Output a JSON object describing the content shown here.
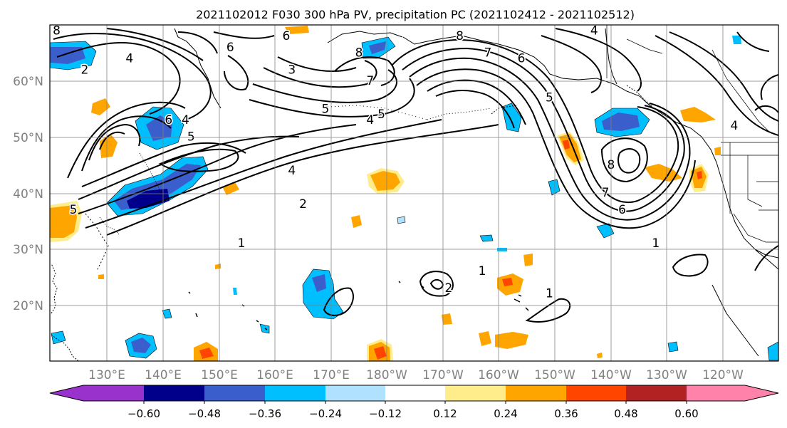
{
  "title": "2021102012 F030 300 hPa PV, precipitation PC (2021102412 - 2021102512)",
  "lat_labels": [
    "60°N",
    "50°N",
    "40°N",
    "30°N",
    "20°N"
  ],
  "lon_labels": [
    "130°E",
    "140°E",
    "150°E",
    "160°E",
    "170°E",
    "180°W",
    "170°W",
    "160°W",
    "150°W",
    "140°W",
    "130°W",
    "120°W"
  ],
  "colorbar": {
    "ticks": [
      "−0.60",
      "−0.48",
      "−0.36",
      "−0.24",
      "−0.12",
      "0.12",
      "0.24",
      "0.36",
      "0.48",
      "0.60"
    ],
    "colors": [
      "#9932cc",
      "#00008b",
      "#3a5fcd",
      "#00bfff",
      "#b0e2ff",
      "#ffffff",
      "#ffec8b",
      "#ffa500",
      "#ff4500",
      "#b22222",
      "#ff82ab"
    ]
  },
  "contour_labels": [
    {
      "text": "8",
      "lon": 121,
      "lat": 69
    },
    {
      "text": "6",
      "lon": 152,
      "lat": 66
    },
    {
      "text": "4",
      "lon": 134,
      "lat": 64
    },
    {
      "text": "2",
      "lon": 126,
      "lat": 62
    },
    {
      "text": "6",
      "lon": 141,
      "lat": 53
    },
    {
      "text": "4",
      "lon": 144,
      "lat": 53
    },
    {
      "text": "5",
      "lon": 145,
      "lat": 50
    },
    {
      "text": "4",
      "lon": 163,
      "lat": 44
    },
    {
      "text": "2",
      "lon": 165,
      "lat": 38
    },
    {
      "text": "1",
      "lon": 154,
      "lat": 31
    },
    {
      "text": "5",
      "lon": 124,
      "lat": 37
    },
    {
      "text": "6",
      "lon": 162,
      "lat": 68
    },
    {
      "text": "3",
      "lon": 163,
      "lat": 62
    },
    {
      "text": "7",
      "lon": 177,
      "lat": 60
    },
    {
      "text": "5",
      "lon": 169,
      "lat": 55
    },
    {
      "text": "4",
      "lon": 177,
      "lat": 53
    },
    {
      "text": "5",
      "lon": 179,
      "lat": 54
    },
    {
      "text": "8",
      "lon": 175,
      "lat": 65
    },
    {
      "text": "8",
      "lon": -167,
      "lat": 68
    },
    {
      "text": "7",
      "lon": -162,
      "lat": 65
    },
    {
      "text": "6",
      "lon": -156,
      "lat": 64
    },
    {
      "text": "4",
      "lon": -143,
      "lat": 69
    },
    {
      "text": "5",
      "lon": -151,
      "lat": 57
    },
    {
      "text": "8",
      "lon": -140,
      "lat": 45
    },
    {
      "text": "7",
      "lon": -141,
      "lat": 40
    },
    {
      "text": "6",
      "lon": -138,
      "lat": 37
    },
    {
      "text": "1",
      "lon": -163,
      "lat": 26
    },
    {
      "text": "2",
      "lon": -169,
      "lat": 23
    },
    {
      "text": "1",
      "lon": -151,
      "lat": 22
    },
    {
      "text": "1",
      "lon": -132,
      "lat": 31
    },
    {
      "text": "4",
      "lon": -118,
      "lat": 52
    }
  ]
}
